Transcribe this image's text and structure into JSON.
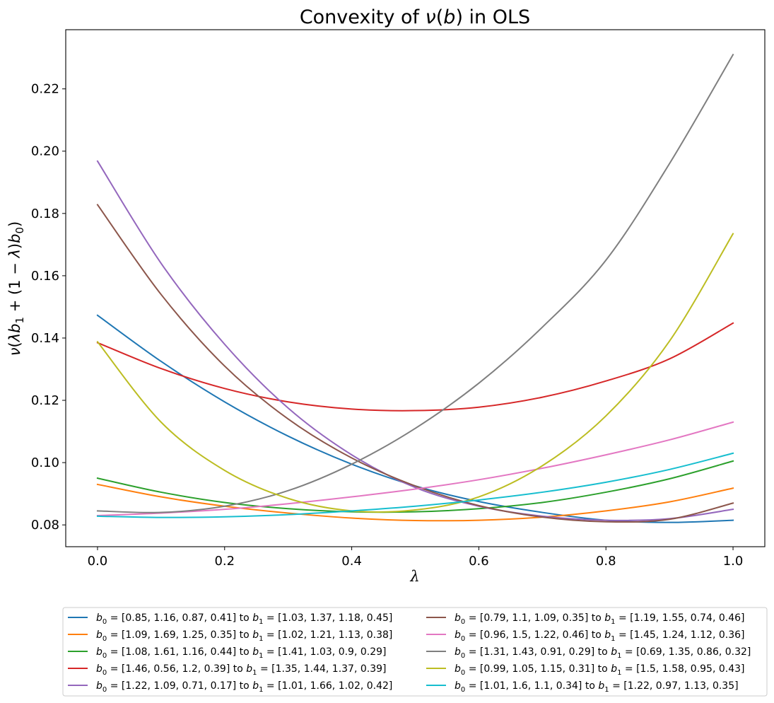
{
  "chart_data": {
    "type": "line",
    "title": "Convexity of ν(b) in OLS",
    "xlabel": "λ",
    "ylabel": "ν(λb₁ + (1 − λ)b₀)",
    "xlim": [
      -0.05,
      1.05
    ],
    "ylim": [
      0.073,
      0.239
    ],
    "xticks": [
      0.0,
      0.2,
      0.4,
      0.6,
      0.8,
      1.0
    ],
    "xtick_labels": [
      "0.0",
      "0.2",
      "0.4",
      "0.6",
      "0.8",
      "1.0"
    ],
    "yticks": [
      0.08,
      0.1,
      0.12,
      0.14,
      0.16,
      0.18,
      0.2,
      0.22
    ],
    "ytick_labels": [
      "0.08",
      "0.10",
      "0.12",
      "0.14",
      "0.16",
      "0.18",
      "0.20",
      "0.22"
    ],
    "legend_position": "bottom-center, two columns",
    "series": [
      {
        "name": "b0 = [0.85, 1.16, 0.87, 0.41] to b1 = [1.03, 1.37, 1.18, 0.45]",
        "b0": "[0.85, 1.16, 0.87, 0.41]",
        "b1": "[1.03, 1.37, 1.18, 0.45]",
        "color": "#1f77b4",
        "x": [
          0,
          0.1,
          0.2,
          0.3,
          0.4,
          0.5,
          0.6,
          0.7,
          0.8,
          0.9,
          1.0
        ],
        "y": [
          0.1473,
          0.1325,
          0.1195,
          0.1085,
          0.0995,
          0.0925,
          0.0875,
          0.084,
          0.0815,
          0.0808,
          0.0815
        ]
      },
      {
        "name": "b0 = [1.09, 1.69, 1.25, 0.35] to b1 = [1.02, 1.21, 1.13, 0.38]",
        "b0": "[1.09, 1.69, 1.25, 0.35]",
        "b1": "[1.02, 1.21, 1.13, 0.38]",
        "color": "#ff7f0e",
        "x": [
          0,
          0.1,
          0.2,
          0.3,
          0.4,
          0.5,
          0.6,
          0.7,
          0.8,
          0.9,
          1.0
        ],
        "y": [
          0.093,
          0.089,
          0.086,
          0.0838,
          0.0822,
          0.0814,
          0.0815,
          0.0825,
          0.0845,
          0.0874,
          0.0918
        ]
      },
      {
        "name": "b0 = [1.08, 1.61, 1.16, 0.44] to b1 = [1.41, 1.03, 0.9, 0.29]",
        "b0": "[1.08, 1.61, 1.16, 0.44]",
        "b1": "[1.41, 1.03, 0.9, 0.29]",
        "color": "#2ca02c",
        "x": [
          0,
          0.1,
          0.2,
          0.3,
          0.4,
          0.5,
          0.6,
          0.7,
          0.8,
          0.9,
          1.0
        ],
        "y": [
          0.095,
          0.0905,
          0.0872,
          0.0852,
          0.0842,
          0.0842,
          0.0852,
          0.0872,
          0.0905,
          0.0948,
          0.1005
        ]
      },
      {
        "name": "b0 = [1.46, 0.56, 1.2, 0.39] to b1 = [1.35, 1.44, 1.37, 0.39]",
        "b0": "[1.46, 0.56, 1.2, 0.39]",
        "b1": "[1.35, 1.44, 1.37, 0.39]",
        "color": "#d62728",
        "x": [
          0,
          0.1,
          0.2,
          0.3,
          0.4,
          0.5,
          0.6,
          0.7,
          0.8,
          0.9,
          1.0
        ],
        "y": [
          0.1385,
          0.1302,
          0.1238,
          0.1195,
          0.1172,
          0.1167,
          0.1178,
          0.121,
          0.1262,
          0.1333,
          0.1448
        ]
      },
      {
        "name": "b0 = [1.22, 1.09, 0.71, 0.17] to b1 = [1.01, 1.66, 1.02, 0.42]",
        "b0": "[1.22, 1.09, 0.71, 0.17]",
        "b1": "[1.01, 1.66, 1.02, 0.42]",
        "color": "#9467bd",
        "x": [
          0,
          0.1,
          0.2,
          0.3,
          0.4,
          0.5,
          0.6,
          0.7,
          0.8,
          0.9,
          1.0
        ],
        "y": [
          0.1968,
          0.164,
          0.138,
          0.1175,
          0.1025,
          0.092,
          0.086,
          0.0828,
          0.0815,
          0.082,
          0.085
        ]
      },
      {
        "name": "b0 = [0.79, 1.1, 1.09, 0.35] to b1 = [1.19, 1.55, 0.74, 0.46]",
        "b0": "[0.79, 1.1, 1.09, 0.35]",
        "b1": "[1.19, 1.55, 0.74, 0.46]",
        "color": "#8c564b",
        "x": [
          0,
          0.1,
          0.2,
          0.3,
          0.4,
          0.5,
          0.6,
          0.7,
          0.8,
          0.9,
          1.0
        ],
        "y": [
          0.1828,
          0.154,
          0.131,
          0.114,
          0.1015,
          0.0925,
          0.0862,
          0.0825,
          0.081,
          0.0818,
          0.087
        ]
      },
      {
        "name": "b0 = [0.96, 1.5, 1.22, 0.46] to b1 = [1.45, 1.24, 1.12, 0.36]",
        "b0": "[0.96, 1.5, 1.22, 0.46]",
        "b1": "[1.45, 1.24, 1.12, 0.36]",
        "color": "#e377c2",
        "x": [
          0,
          0.1,
          0.2,
          0.3,
          0.4,
          0.5,
          0.6,
          0.7,
          0.8,
          0.9,
          1.0
        ],
        "y": [
          0.083,
          0.0838,
          0.085,
          0.0868,
          0.089,
          0.0915,
          0.0945,
          0.0982,
          0.1025,
          0.1073,
          0.113
        ]
      },
      {
        "name": "b0 = [1.31, 1.43, 0.91, 0.29] to b1 = [0.69, 1.35, 0.86, 0.32]",
        "b0": "[1.31, 1.43, 0.91, 0.29]",
        "b1": "[0.69, 1.35, 0.86, 0.32]",
        "color": "#7f7f7f",
        "x": [
          0,
          0.1,
          0.2,
          0.3,
          0.4,
          0.5,
          0.6,
          0.7,
          0.8,
          0.9,
          1.0
        ],
        "y": [
          0.0845,
          0.084,
          0.086,
          0.091,
          0.0995,
          0.111,
          0.1255,
          0.1435,
          0.165,
          0.196,
          0.231
        ]
      },
      {
        "name": "b0 = [0.99, 1.05, 1.15, 0.31] to b1 = [1.5, 1.58, 0.95, 0.43]",
        "b0": "[0.99, 1.05, 1.15, 0.31]",
        "b1": "[1.5, 1.58, 0.95, 0.43]",
        "color": "#bcbd22",
        "x": [
          0,
          0.1,
          0.2,
          0.3,
          0.4,
          0.5,
          0.6,
          0.7,
          0.8,
          0.9,
          1.0
        ],
        "y": [
          0.1388,
          0.113,
          0.0975,
          0.0885,
          0.0845,
          0.0848,
          0.089,
          0.099,
          0.115,
          0.139,
          0.1735
        ]
      },
      {
        "name": "b0 = [1.01, 1.6, 1.1, 0.34] to b1 = [1.22, 0.97, 1.13, 0.35]",
        "b0": "[1.01, 1.6, 1.1, 0.34]",
        "b1": "[1.22, 0.97, 1.13, 0.35]",
        "color": "#17becf",
        "x": [
          0,
          0.1,
          0.2,
          0.3,
          0.4,
          0.5,
          0.6,
          0.7,
          0.8,
          0.9,
          1.0
        ],
        "y": [
          0.0828,
          0.0824,
          0.0826,
          0.0833,
          0.0845,
          0.086,
          0.088,
          0.0905,
          0.0937,
          0.0978,
          0.103
        ]
      }
    ]
  }
}
